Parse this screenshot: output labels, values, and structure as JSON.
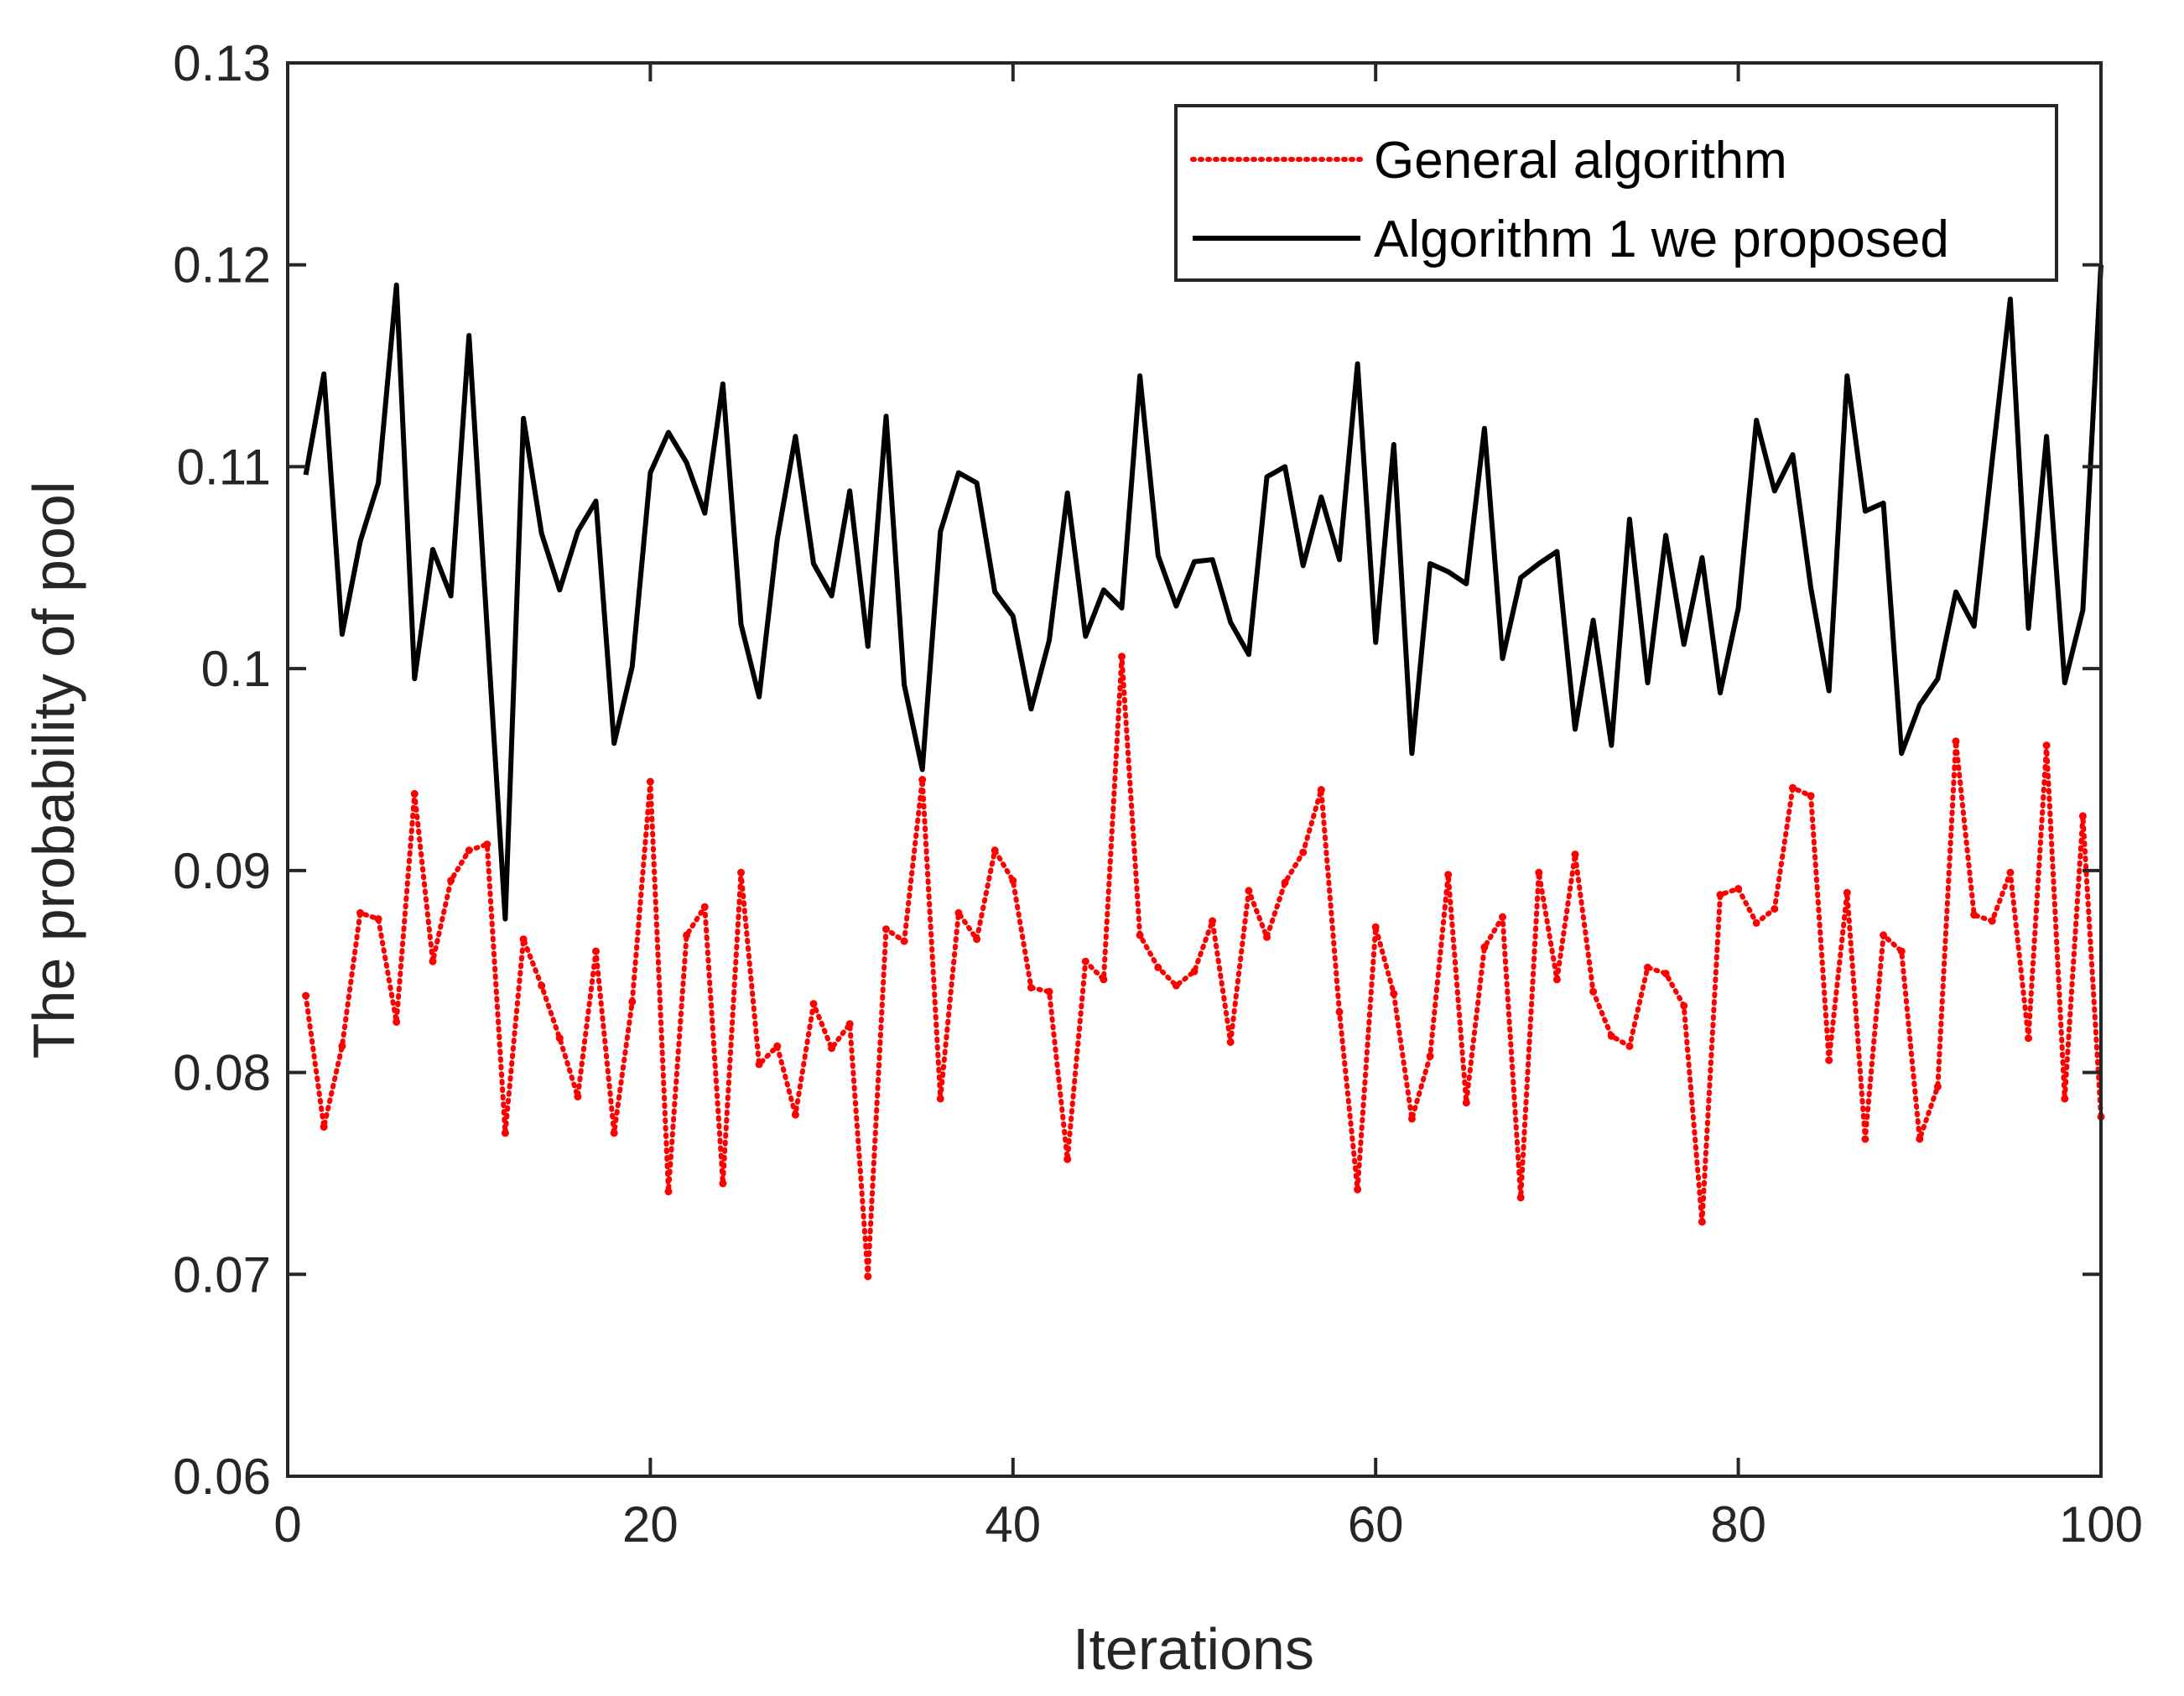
{
  "chart_data": {
    "type": "line",
    "title": "",
    "xlabel": "Iterations",
    "ylabel": "The probability of pool",
    "xlim": [
      0,
      100
    ],
    "ylim": [
      0.06,
      0.13
    ],
    "xticks": [
      0,
      20,
      40,
      60,
      80,
      100
    ],
    "xtick_labels": [
      "0",
      "20",
      "40",
      "60",
      "80",
      "100"
    ],
    "yticks": [
      0.06,
      0.07,
      0.08,
      0.09,
      0.1,
      0.11,
      0.12,
      0.13
    ],
    "ytick_labels": [
      "0.06",
      "0.07",
      "0.08",
      "0.09",
      "0.1",
      "0.11",
      "0.12",
      "0.13"
    ],
    "grid": false,
    "legend_position": "top-right",
    "x": [
      1,
      2,
      3,
      4,
      5,
      6,
      7,
      8,
      9,
      10,
      11,
      12,
      13,
      14,
      15,
      16,
      17,
      18,
      19,
      20,
      21,
      22,
      23,
      24,
      25,
      26,
      27,
      28,
      29,
      30,
      31,
      32,
      33,
      34,
      35,
      36,
      37,
      38,
      39,
      40,
      41,
      42,
      43,
      44,
      45,
      46,
      47,
      48,
      49,
      50,
      51,
      52,
      53,
      54,
      55,
      56,
      57,
      58,
      59,
      60,
      61,
      62,
      63,
      64,
      65,
      66,
      67,
      68,
      69,
      70,
      71,
      72,
      73,
      74,
      75,
      76,
      77,
      78,
      79,
      80,
      81,
      82,
      83,
      84,
      85,
      86,
      87,
      88,
      89,
      90,
      91,
      92,
      93,
      94,
      95,
      96,
      97,
      98,
      99,
      100
    ],
    "series": [
      {
        "name": "General algorithm",
        "color": "#ff0000",
        "style": "dotted",
        "values": [
          0.0838,
          0.0773,
          0.0813,
          0.0879,
          0.0876,
          0.0825,
          0.0938,
          0.0855,
          0.0895,
          0.091,
          0.0913,
          0.077,
          0.0866,
          0.0843,
          0.0817,
          0.0788,
          0.086,
          0.077,
          0.0835,
          0.0944,
          0.0741,
          0.0868,
          0.0882,
          0.0745,
          0.0899,
          0.0804,
          0.0813,
          0.0779,
          0.0834,
          0.0812,
          0.0824,
          0.0699,
          0.0871,
          0.0865,
          0.0945,
          0.0787,
          0.0879,
          0.0866,
          0.091,
          0.0895,
          0.0842,
          0.084,
          0.0757,
          0.0855,
          0.0846,
          0.1006,
          0.0868,
          0.0852,
          0.0843,
          0.085,
          0.0875,
          0.0815,
          0.089,
          0.0867,
          0.0894,
          0.0909,
          0.094,
          0.083,
          0.0742,
          0.0872,
          0.0839,
          0.0777,
          0.0808,
          0.0898,
          0.0785,
          0.0862,
          0.0877,
          0.0738,
          0.0899,
          0.0846,
          0.0908,
          0.084,
          0.0818,
          0.0813,
          0.0852,
          0.0849,
          0.0833,
          0.0726,
          0.0888,
          0.0891,
          0.0874,
          0.0881,
          0.0941,
          0.0937,
          0.0806,
          0.0889,
          0.0767,
          0.0868,
          0.086,
          0.0767,
          0.0793,
          0.0964,
          0.0878,
          0.0875,
          0.0899,
          0.0817,
          0.0962,
          0.0787,
          0.0927,
          0.0778
        ]
      },
      {
        "name": "Algorithm 1 we proposed",
        "color": "#000000",
        "style": "solid",
        "values": [
          0.1096,
          0.1146,
          0.1017,
          0.1063,
          0.1092,
          0.119,
          0.0995,
          0.1059,
          0.1036,
          0.1165,
          0.102,
          0.0876,
          0.1124,
          0.1067,
          0.1039,
          0.1068,
          0.1083,
          0.0963,
          0.1001,
          0.1097,
          0.1117,
          0.1102,
          0.1077,
          0.1141,
          0.1022,
          0.0986,
          0.1064,
          0.1115,
          0.1052,
          0.1036,
          0.1088,
          0.1011,
          0.1125,
          0.0992,
          0.095,
          0.1068,
          0.1097,
          0.1092,
          0.1038,
          0.1026,
          0.098,
          0.1014,
          0.1087,
          0.1016,
          0.1039,
          0.103,
          0.1145,
          0.1056,
          0.1031,
          0.1053,
          0.1054,
          0.1023,
          0.1007,
          0.1095,
          0.11,
          0.1051,
          0.1085,
          0.1054,
          0.1151,
          0.1013,
          0.1111,
          0.0958,
          0.1052,
          0.1048,
          0.1042,
          0.1119,
          0.1005,
          0.1045,
          0.1052,
          0.1058,
          0.097,
          0.1024,
          0.0962,
          0.1074,
          0.0993,
          0.1066,
          0.1012,
          0.1055,
          0.0988,
          0.103,
          0.1123,
          0.1088,
          0.1106,
          0.104,
          0.0989,
          0.1145,
          0.1078,
          0.1082,
          0.0958,
          0.0982,
          0.0995,
          0.1038,
          0.1021,
          0.1103,
          0.1183,
          0.102,
          0.1115,
          0.0993,
          0.1029,
          0.12
        ]
      }
    ]
  }
}
